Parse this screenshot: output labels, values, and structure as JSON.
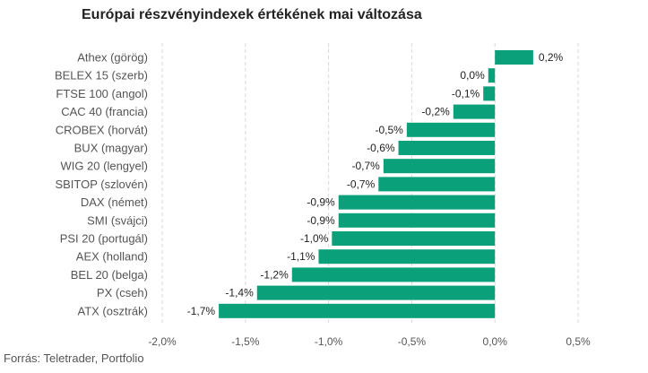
{
  "chart_data": {
    "type": "bar",
    "orientation": "horizontal",
    "title": "Európai részvényindexek értékének mai változása",
    "source": "Forrás: Teletrader, Portfolio",
    "bar_color": "#0aa07a",
    "xlim": [
      -2.0,
      0.5
    ],
    "grid": true,
    "ticks": [
      -2.0,
      -1.5,
      -1.0,
      -0.5,
      0.0,
      0.5
    ],
    "tick_labels": [
      "-2,0%",
      "-1,5%",
      "-1,0%",
      "-0,5%",
      "0,0%",
      "0,5%"
    ],
    "categories": [
      "Athex (görög)",
      "BELEX 15 (szerb)",
      "FTSE 100 (angol)",
      "CAC 40 (francia)",
      "CROBEX (horvát)",
      "BUX (magyar)",
      "WIG 20 (lengyel)",
      "SBITOP (szlovén)",
      "DAX (német)",
      "SMI (svájci)",
      "PSI 20 (portugál)",
      "AEX (holland)",
      "BEL 20 (belga)",
      "PX (cseh)",
      "ATX (osztrák)"
    ],
    "values": [
      0.23,
      -0.04,
      -0.07,
      -0.25,
      -0.53,
      -0.58,
      -0.67,
      -0.7,
      -0.94,
      -0.94,
      -0.98,
      -1.06,
      -1.22,
      -1.43,
      -1.66
    ],
    "value_labels": [
      "0,2%",
      "0,0%",
      "-0,1%",
      "-0,2%",
      "-0,5%",
      "-0,6%",
      "-0,7%",
      "-0,7%",
      "-0,9%",
      "-0,9%",
      "-1,0%",
      "-1,1%",
      "-1,2%",
      "-1,4%",
      "-1,7%"
    ]
  }
}
